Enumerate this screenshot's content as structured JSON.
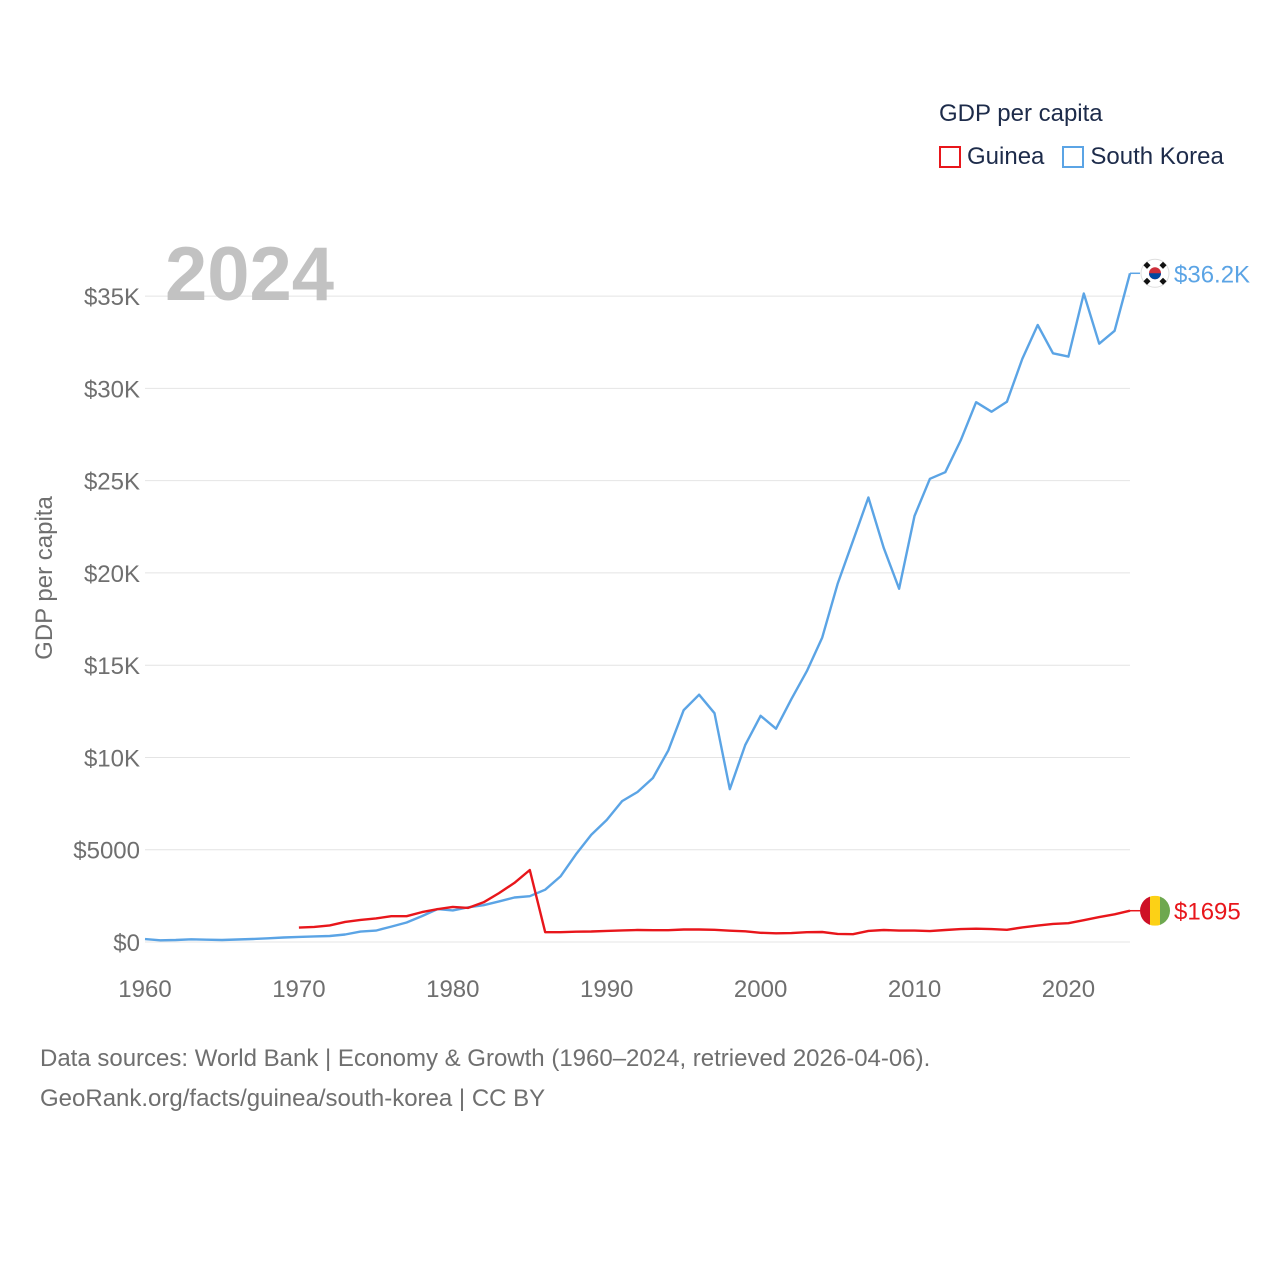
{
  "legend": {
    "title": "GDP per capita",
    "items": [
      {
        "label": "Guinea",
        "color": "#e8161b"
      },
      {
        "label": "South Korea",
        "color": "#5ba4e5"
      }
    ]
  },
  "footer": {
    "line1": "Data sources: World Bank | Economy & Growth (1960–2024, retrieved 2026-04-06).",
    "line2": "GeoRank.org/facts/guinea/south-korea | CC BY"
  },
  "chart_data": {
    "type": "line",
    "title": "",
    "year_label": "2024",
    "ylabel": "GDP per capita",
    "xlabel": "",
    "xlim": [
      1960,
      2024
    ],
    "ylim": [
      0,
      37500
    ],
    "x_ticks": [
      1960,
      1970,
      1980,
      1990,
      2000,
      2010,
      2020
    ],
    "x_tick_labels": [
      "1960",
      "1970",
      "1980",
      "1990",
      "2000",
      "2010",
      "2020"
    ],
    "y_ticks": [
      0,
      5000,
      10000,
      15000,
      20000,
      25000,
      30000,
      35000
    ],
    "y_tick_labels": [
      "$0",
      "$5000",
      "$10K",
      "$15K",
      "$20K",
      "$25K",
      "$30K",
      "$35K"
    ],
    "grid": true,
    "series": [
      {
        "name": "South Korea",
        "color": "#5ba4e5",
        "end_label": "$36.2K",
        "flag": "south-korea-flag",
        "x": [
          1960,
          1961,
          1962,
          1963,
          1964,
          1965,
          1966,
          1967,
          1968,
          1969,
          1970,
          1971,
          1972,
          1973,
          1974,
          1975,
          1976,
          1977,
          1978,
          1979,
          1980,
          1981,
          1982,
          1983,
          1984,
          1985,
          1986,
          1987,
          1988,
          1989,
          1990,
          1991,
          1992,
          1993,
          1994,
          1995,
          1996,
          1997,
          1998,
          1999,
          2000,
          2001,
          2002,
          2003,
          2004,
          2005,
          2006,
          2007,
          2008,
          2009,
          2010,
          2011,
          2012,
          2013,
          2014,
          2015,
          2016,
          2017,
          2018,
          2019,
          2020,
          2021,
          2022,
          2023,
          2024
        ],
        "values": [
          158,
          94,
          106,
          146,
          123,
          108,
          133,
          161,
          198,
          243,
          279,
          301,
          324,
          406,
          563,
          617,
          834,
          1056,
          1406,
          1784,
          1715,
          1883,
          1993,
          2199,
          2413,
          2482,
          2835,
          3555,
          4749,
          5817,
          6610,
          7637,
          8127,
          8885,
          10385,
          12565,
          13403,
          12398,
          8282,
          10672,
          12257,
          11561,
          13165,
          14673,
          16496,
          19403,
          21743,
          24086,
          21345,
          19144,
          23087,
          25100,
          25459,
          27180,
          29253,
          28737,
          29274,
          31601,
          33436,
          31902,
          31721,
          35142,
          32423,
          33121,
          36238
        ]
      },
      {
        "name": "Guinea",
        "color": "#e8161b",
        "end_label": "$1695",
        "flag": "guinea-flag",
        "x": [
          1970,
          1971,
          1972,
          1973,
          1974,
          1975,
          1976,
          1977,
          1978,
          1979,
          1980,
          1981,
          1982,
          1983,
          1984,
          1985,
          1986,
          1987,
          1988,
          1989,
          1990,
          1991,
          1992,
          1993,
          1994,
          1995,
          1996,
          1997,
          1998,
          1999,
          2000,
          2001,
          2002,
          2003,
          2004,
          2005,
          2006,
          2007,
          2008,
          2009,
          2010,
          2011,
          2012,
          2013,
          2014,
          2015,
          2016,
          2017,
          2018,
          2019,
          2020,
          2021,
          2022,
          2023,
          2024
        ],
        "values": [
          780,
          820,
          900,
          1090,
          1200,
          1280,
          1400,
          1400,
          1620,
          1780,
          1900,
          1850,
          2150,
          2650,
          3200,
          3900,
          530,
          530,
          560,
          570,
          600,
          630,
          650,
          640,
          640,
          680,
          680,
          660,
          610,
          580,
          500,
          470,
          480,
          530,
          540,
          440,
          420,
          600,
          650,
          620,
          620,
          590,
          650,
          700,
          720,
          700,
          660,
          790,
          890,
          980,
          1020,
          1180,
          1350,
          1500,
          1695
        ]
      }
    ]
  }
}
